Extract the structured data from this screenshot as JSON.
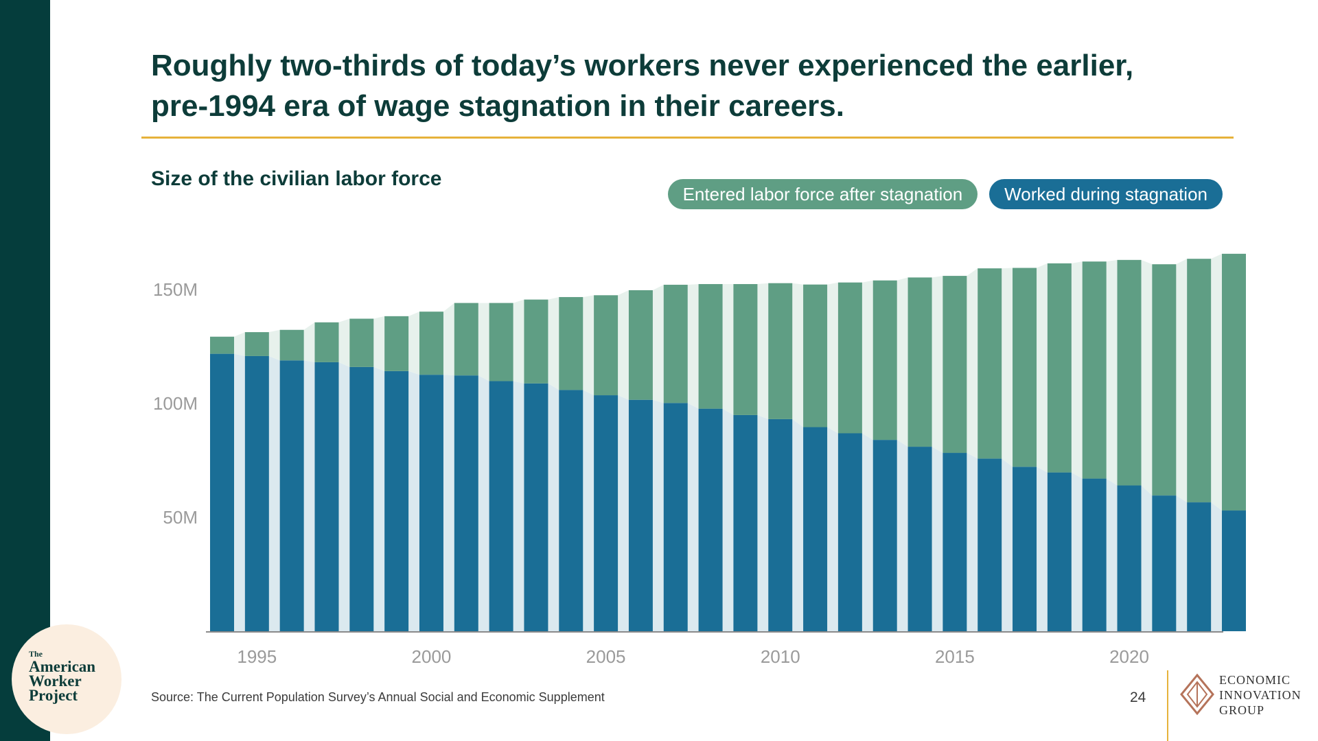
{
  "slide": {
    "headline_line1": "Roughly two-thirds of today’s workers never experienced the earlier,",
    "headline_line2": "pre-1994 era of wage stagnation in their careers.",
    "source": "Source: The Current Population Survey’s Annual Social and Economic Supplement",
    "page_number": "24"
  },
  "logo": {
    "small": "The",
    "line1": "American",
    "line2": "Worker",
    "line3": "Project"
  },
  "eig": {
    "line1": "ECONOMIC",
    "line2": "INNOVATION",
    "line3": "GROUP"
  },
  "colors": {
    "sidebar": "#053d3c",
    "accent_gold": "#e6b23a",
    "worked_during": "#1a6e96",
    "entered_after": "#5f9e84",
    "worked_during_bg": "#dbe9ef",
    "entered_after_bg": "#e7f1ec"
  },
  "chart_data": {
    "type": "bar",
    "stacked": true,
    "title": "Size of the civilian labor force",
    "x": [
      1994,
      1995,
      1996,
      1997,
      1998,
      1999,
      2000,
      2001,
      2002,
      2003,
      2004,
      2005,
      2006,
      2007,
      2008,
      2009,
      2010,
      2011,
      2012,
      2013,
      2014,
      2015,
      2016,
      2017,
      2018,
      2019,
      2020,
      2021,
      2022,
      2023
    ],
    "series": [
      {
        "name": "Worked during stagnation",
        "color": "#1a6e96",
        "values": [
          121.8,
          120.8,
          118.9,
          118.1,
          116.0,
          114.2,
          112.6,
          112.3,
          109.8,
          108.8,
          105.9,
          103.6,
          101.6,
          100.2,
          97.7,
          94.9,
          93.1,
          89.6,
          86.9,
          84.0,
          81.0,
          78.3,
          75.8,
          72.2,
          69.7,
          67.0,
          64.0,
          59.6,
          56.6,
          53.0
        ]
      },
      {
        "name": "Entered labor force after stagnation",
        "color": "#5f9e84",
        "values": [
          7.5,
          10.5,
          13.4,
          17.5,
          21.2,
          24.1,
          27.7,
          31.8,
          34.3,
          36.8,
          40.8,
          43.9,
          48.1,
          51.9,
          54.7,
          57.5,
          59.7,
          62.6,
          66.2,
          70.0,
          74.3,
          77.7,
          83.5,
          87.3,
          91.8,
          95.3,
          99.0,
          101.5,
          106.9,
          112.7
        ]
      }
    ],
    "x_ticks": [
      "1995",
      "2000",
      "2005",
      "2010",
      "2015",
      "2020"
    ],
    "x_tick_values": [
      1995,
      2000,
      2005,
      2010,
      2015,
      2020
    ],
    "y_ticks": [
      "50M",
      "100M",
      "150M"
    ],
    "y_tick_values": [
      50,
      100,
      150
    ],
    "ylim": [
      0,
      170
    ],
    "legend": [
      "Entered labor force after stagnation",
      "Worked during stagnation"
    ],
    "legend_position": "top-right",
    "grid": false
  }
}
